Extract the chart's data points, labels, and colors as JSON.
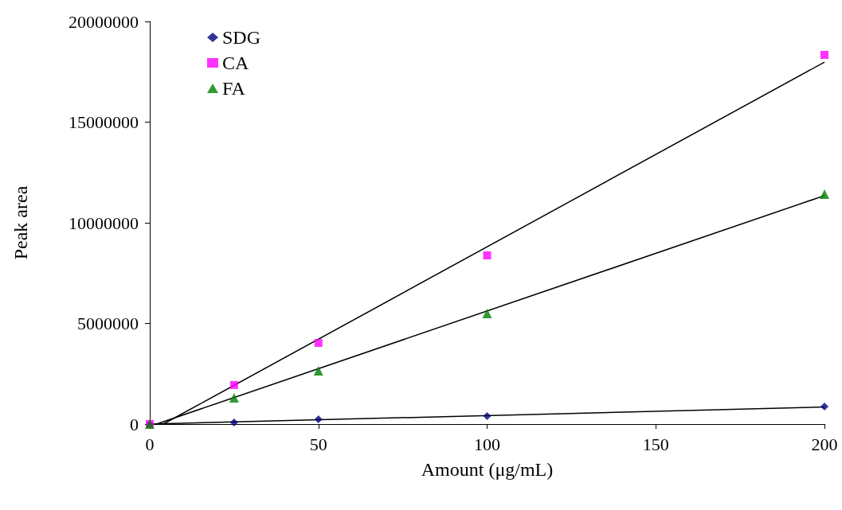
{
  "chart_data": {
    "type": "scatter",
    "xlabel": "Amount (μg/mL)",
    "ylabel": "Peak area",
    "xlim": [
      0,
      200
    ],
    "xticks": [
      0,
      50,
      100,
      150,
      200
    ],
    "ylim": [
      0,
      20000000
    ],
    "yticks": [
      0,
      5000000,
      10000000,
      15000000,
      20000000
    ],
    "grid": false,
    "legend": "top left",
    "series": [
      {
        "name": "SDG",
        "color": "#000080",
        "marker": "diamond",
        "x": [
          0,
          25,
          50,
          100,
          200
        ],
        "values": [
          0,
          80000,
          240000,
          400000,
          870000
        ]
      },
      {
        "name": "CA",
        "color": "#ff00ff",
        "marker": "square",
        "x": [
          0,
          25,
          50,
          100,
          200
        ],
        "values": [
          0,
          1940000,
          4030000,
          8380000,
          18340000
        ]
      },
      {
        "name": "FA",
        "color": "#008000",
        "marker": "triangle",
        "x": [
          0,
          25,
          50,
          100,
          200
        ],
        "values": [
          0,
          1300000,
          2650000,
          5490000,
          11420000
        ]
      },
      {
        "type": "line",
        "color": "#000000",
        "marker": "none",
        "line_style": "solid",
        "x": [
          0,
          200
        ],
        "values": [
          0,
          850000
        ]
      },
      {
        "type": "line",
        "color": "#000000",
        "marker": "none",
        "line_style": "solid",
        "x": [
          4,
          200
        ],
        "values": [
          0,
          17980000
        ]
      },
      {
        "type": "line",
        "color": "#000000",
        "marker": "none",
        "line_style": "solid",
        "x": [
          2,
          200
        ],
        "values": [
          0,
          11350000
        ]
      }
    ]
  }
}
